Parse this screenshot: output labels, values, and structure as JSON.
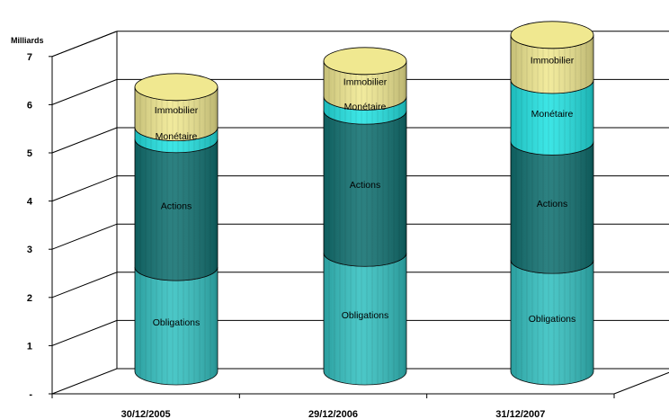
{
  "chart_data": {
    "type": "bar",
    "stacked": true,
    "style": "3d-cylinder",
    "unit_label": "Milliards",
    "categories": [
      "30/12/2005",
      "29/12/2006",
      "31/12/2007"
    ],
    "y_ticks": [
      "-",
      "1",
      "2",
      "3",
      "4",
      "5",
      "6",
      "7"
    ],
    "ylim": [
      0,
      7
    ],
    "grid": true,
    "series": [
      {
        "name": "Obligations",
        "values": [
          2.2,
          2.5,
          2.35
        ],
        "color": "#33c0c0",
        "label_color": "#000000"
      },
      {
        "name": "Actions",
        "values": [
          2.7,
          3.0,
          2.5
        ],
        "color": "#107070",
        "label_color": "#ffffff"
      },
      {
        "name": "Monétaire",
        "values": [
          0.25,
          0.3,
          1.3
        ],
        "color": "#22e2e2",
        "label_color": "#000000"
      },
      {
        "name": "Immobilier",
        "values": [
          0.85,
          0.75,
          0.95
        ],
        "color": "#f0e890",
        "label_color": "#000000"
      }
    ]
  }
}
